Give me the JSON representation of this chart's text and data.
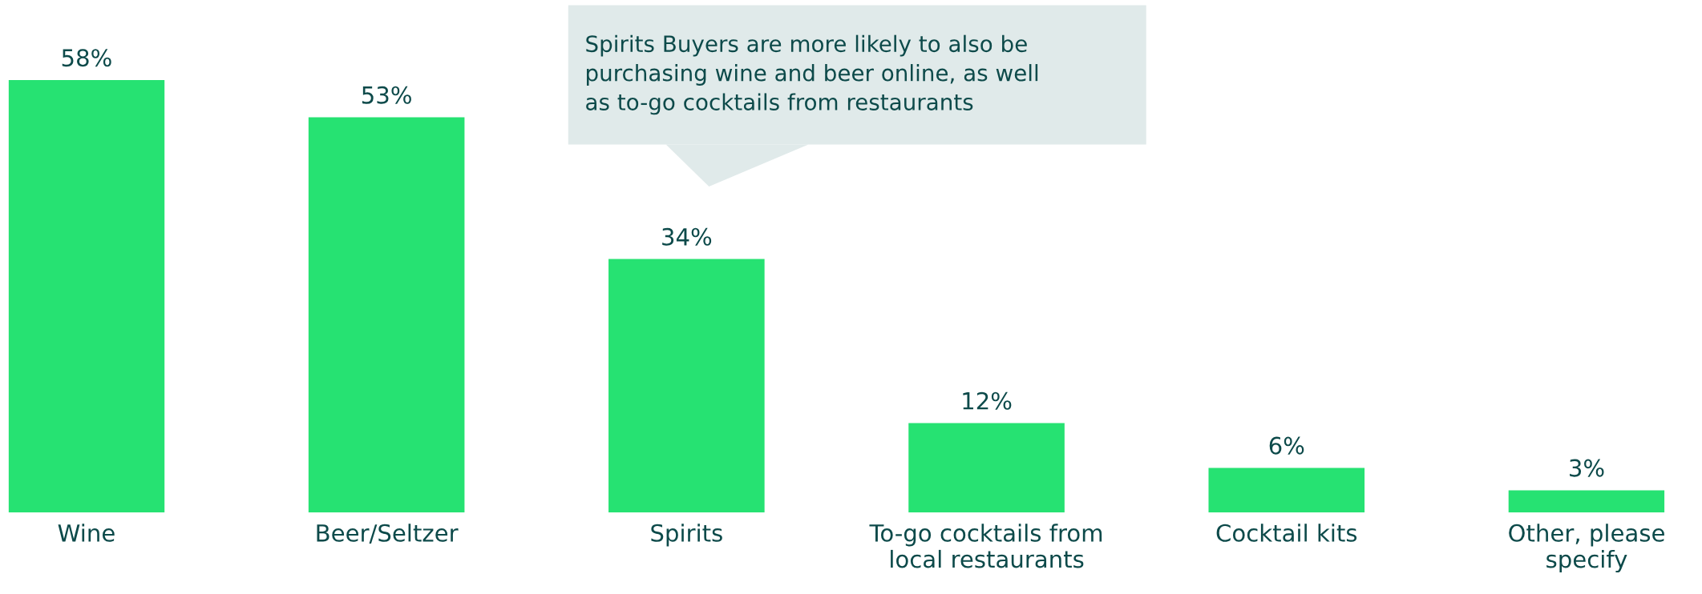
{
  "chart_data": {
    "type": "bar",
    "categories": [
      "Wine",
      "Beer/Seltzer",
      "Spirits",
      "To-go cocktails from\nlocal restaurants",
      "Cocktail kits",
      "Other, please\nspecify"
    ],
    "values": [
      58,
      53,
      34,
      12,
      6,
      3
    ],
    "value_labels": [
      "58%",
      "53%",
      "34%",
      "12%",
      "6%",
      "3%"
    ],
    "color": "#26e272",
    "annotations": [
      "Spirits Buyers are more likely to also be\npurchasing wine and beer online, as well\nas to-go cocktails from restaurants"
    ],
    "grid": false,
    "legend": false
  }
}
